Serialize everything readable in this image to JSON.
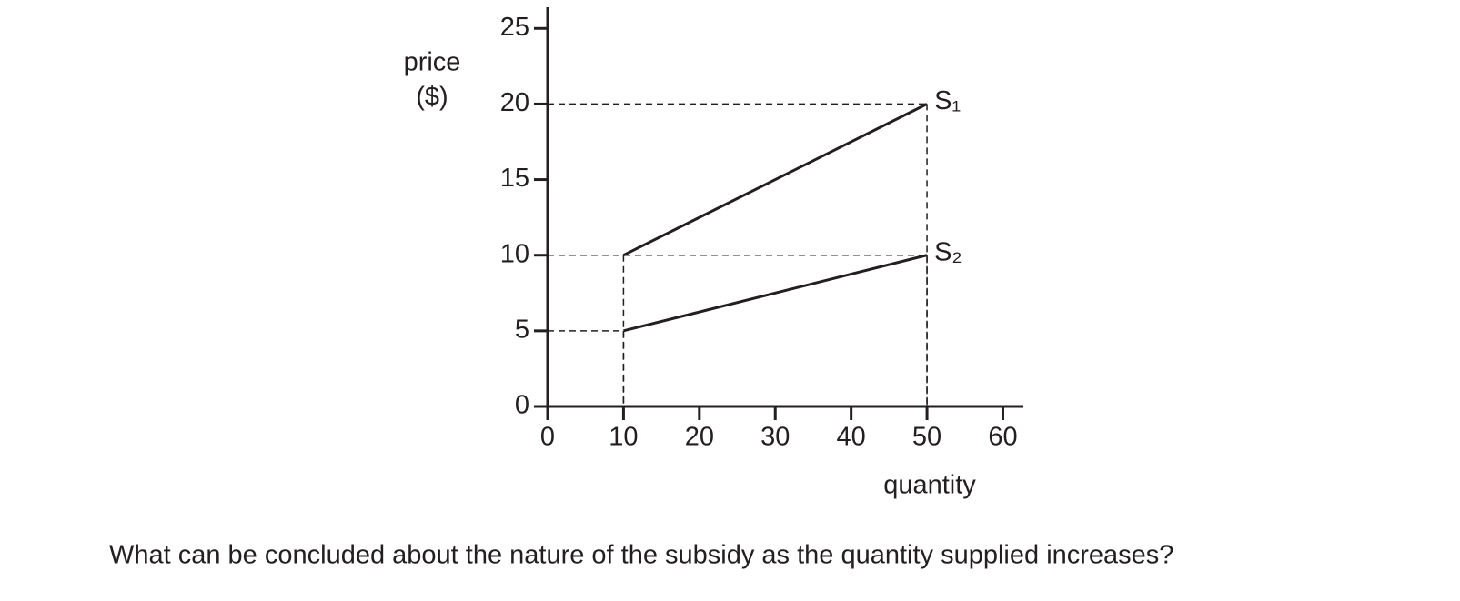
{
  "chart_data": {
    "type": "line",
    "ylabel": [
      "price",
      "($)"
    ],
    "xlabel": "quantity",
    "series": [
      {
        "name": "S₁",
        "color": "#231f20",
        "x": [
          10,
          50
        ],
        "values": [
          10,
          20
        ]
      },
      {
        "name": "S₂",
        "color": "#231f20",
        "x": [
          10,
          50
        ],
        "values": [
          5,
          10
        ]
      }
    ],
    "xlim": [
      0,
      62.7
    ],
    "ylim": [
      0,
      26.4
    ],
    "xticks": [
      0,
      10,
      20,
      30,
      40,
      50,
      60
    ],
    "yticks": [
      0,
      5,
      10,
      15,
      20,
      25
    ],
    "guides": true
  },
  "question": "What can be concluded about the nature of the subsidy as the quantity supplied increases?"
}
